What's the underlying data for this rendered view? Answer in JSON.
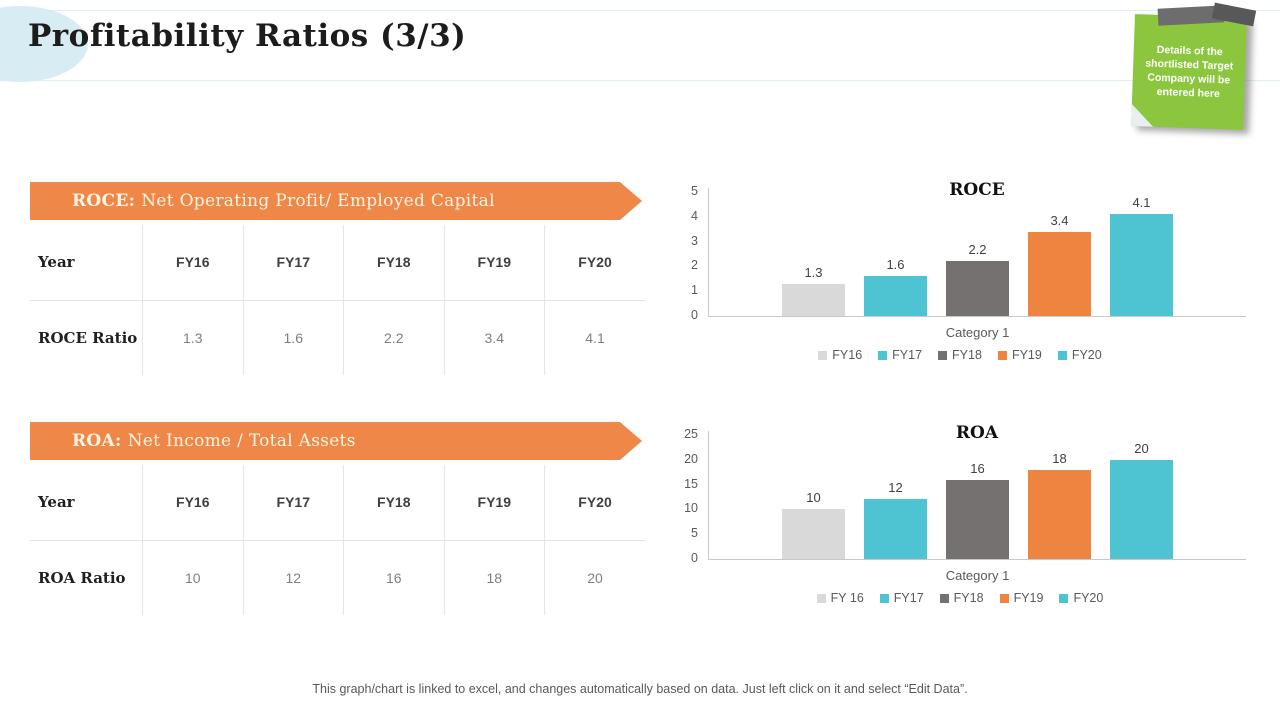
{
  "slide_title": "Profitability Ratios (3/3)",
  "sticky_note": {
    "text": "Details of the shortlisted Target Company will be entered here"
  },
  "sections": [
    {
      "id": "roce",
      "banner": {
        "bold": "ROCE:",
        "rest": "Net Operating Profit/ Employed Capital"
      },
      "table": {
        "header_label": "Year",
        "columns": [
          "FY16",
          "FY17",
          "FY18",
          "FY19",
          "FY20"
        ],
        "row_label": "ROCE Ratio",
        "values": [
          "1.3",
          "1.6",
          "2.2",
          "3.4",
          "4.1"
        ]
      }
    },
    {
      "id": "roa",
      "banner": {
        "bold": "ROA:",
        "rest": "Net Income / Total Assets"
      },
      "table": {
        "header_label": "Year",
        "columns": [
          "FY16",
          "FY17",
          "FY18",
          "FY19",
          "FY20"
        ],
        "row_label": "ROA Ratio",
        "values": [
          "10",
          "12",
          "16",
          "18",
          "20"
        ]
      }
    }
  ],
  "chart_data": [
    {
      "type": "bar",
      "title": "ROCE",
      "categories": [
        "FY16",
        "FY17",
        "FY18",
        "FY19",
        "FY20"
      ],
      "values": [
        1.3,
        1.6,
        2.2,
        3.4,
        4.1
      ],
      "xlabel": "Category 1",
      "ylabel": "",
      "ylim": [
        0,
        5
      ],
      "yticks": [
        0,
        1,
        2,
        3,
        4,
        5
      ],
      "grid": false,
      "legend_position": "bottom",
      "legend": [
        "FY16",
        "FY17",
        "FY18",
        "FY19",
        "FY20"
      ],
      "colors": [
        "#d9d9d9",
        "#4ec3d2",
        "#767171",
        "#ed8440",
        "#4ec3d2"
      ]
    },
    {
      "type": "bar",
      "title": "ROA",
      "categories": [
        "FY16",
        "FY17",
        "FY18",
        "FY19",
        "FY20"
      ],
      "values": [
        10,
        12,
        16,
        18,
        20
      ],
      "xlabel": "Category 1",
      "ylabel": "",
      "ylim": [
        0,
        25
      ],
      "yticks": [
        0,
        5,
        10,
        15,
        20,
        25
      ],
      "grid": false,
      "legend_position": "bottom",
      "legend": [
        "FY 16",
        "FY17",
        "FY18",
        "FY19",
        "FY20"
      ],
      "colors": [
        "#d9d9d9",
        "#4ec3d2",
        "#767171",
        "#ed8440",
        "#4ec3d2"
      ]
    }
  ],
  "footer": "This graph/chart is linked to excel, and changes automatically based on data. Just left click on it and select “Edit Data”.",
  "colors": {
    "accent_orange": "#ee8747",
    "teal": "#4ec3d2",
    "light_gray": "#d9d9d9",
    "dark_gray": "#767171",
    "note_green": "#8cc63f"
  }
}
